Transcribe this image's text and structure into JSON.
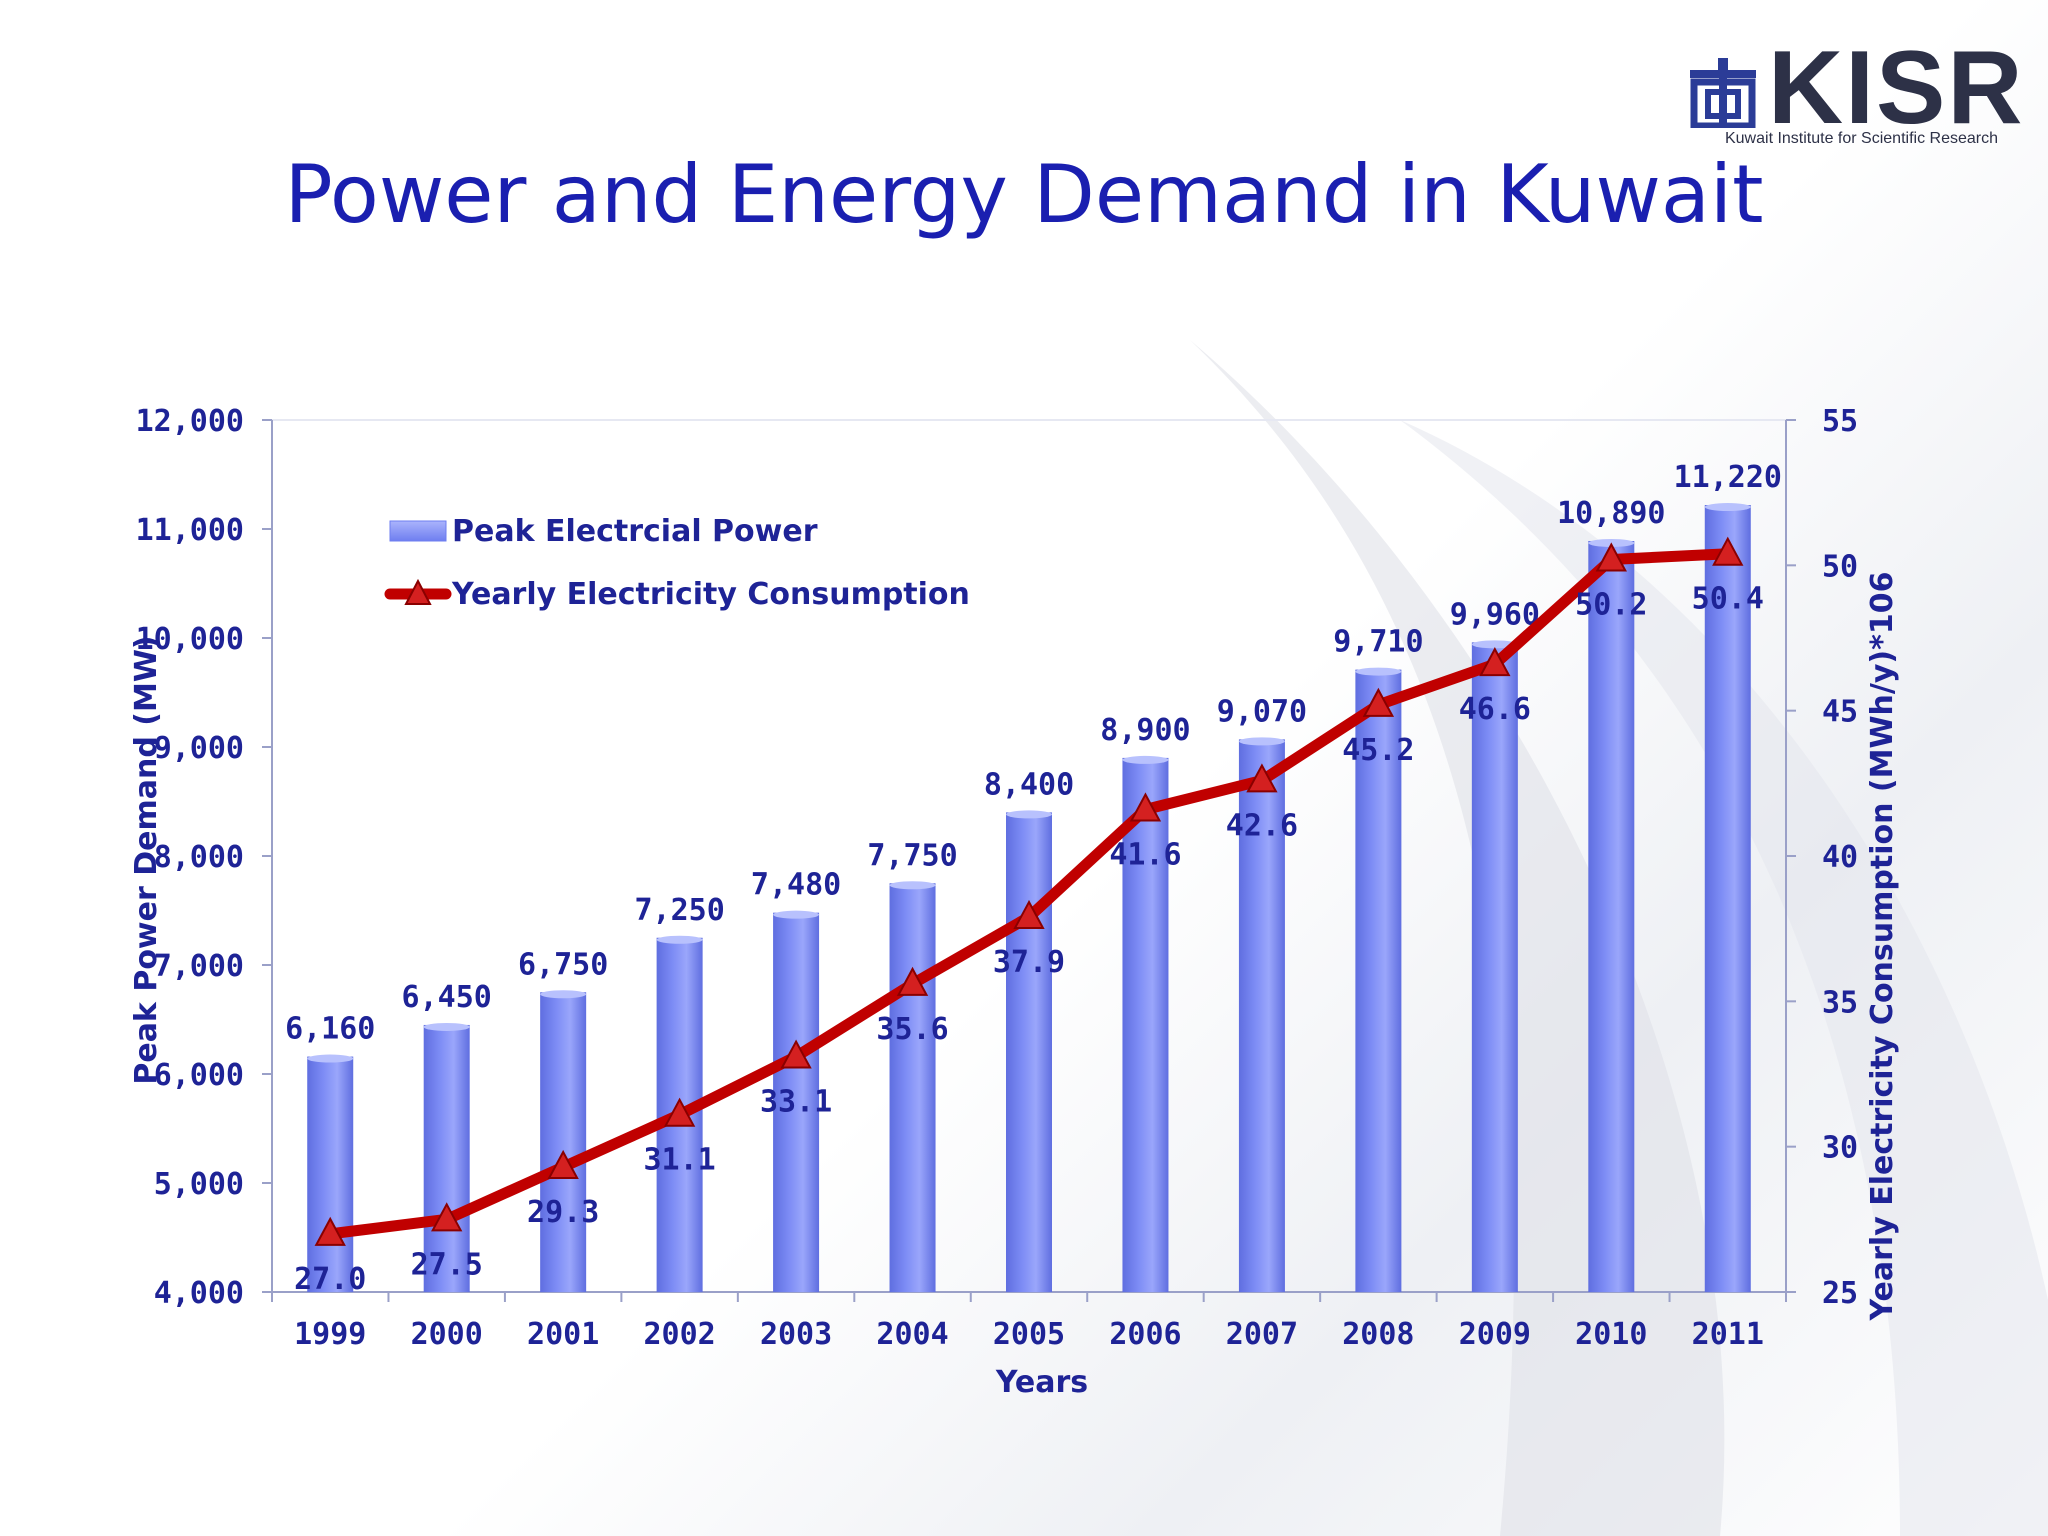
{
  "slide": {
    "title": "Power and Energy Demand in Kuwait"
  },
  "logo": {
    "text": "KISR",
    "subtitle": "Kuwait Institute for Scientific Research"
  },
  "colors": {
    "title": "#1a1fb0",
    "text": "#1e2396",
    "bar": "#7d8cf5",
    "line": "#c00000"
  },
  "chart_data": {
    "type": "bar",
    "xlabel": "Years",
    "ylabel": "Peak Power Demand (MW)",
    "y2label": "Yearly Electricity Consumption  (MWh/y)*106",
    "ylim": [
      4000,
      12000
    ],
    "y2lim": [
      25,
      55
    ],
    "yticks": [
      "4,000",
      "5,000",
      "6,000",
      "7,000",
      "8,000",
      "9,000",
      "10,000",
      "11,000",
      "12,000"
    ],
    "y2ticks": [
      "25",
      "30",
      "35",
      "40",
      "45",
      "50",
      "55"
    ],
    "grid": false,
    "legend_position": "top-left",
    "categories": [
      "1999",
      "2000",
      "2001",
      "2002",
      "2003",
      "2004",
      "2005",
      "2006",
      "2007",
      "2008",
      "2009",
      "2010",
      "2011"
    ],
    "series": [
      {
        "name": "Peak Electrcial Power",
        "type": "bar",
        "axis": "left",
        "values": [
          6160,
          6450,
          6750,
          7250,
          7480,
          7750,
          8400,
          8900,
          9070,
          9710,
          9960,
          10890,
          11220
        ],
        "labels": [
          "6,160",
          "6,450",
          "6,750",
          "7,250",
          "7,480",
          "7,750",
          "8,400",
          "8,900",
          "9,070",
          "9,710",
          "9,960",
          "10,890",
          "11,220"
        ]
      },
      {
        "name": "Yearly Electricity Consumption",
        "type": "line",
        "axis": "right",
        "marker": "triangle",
        "values": [
          27.0,
          27.5,
          29.3,
          31.1,
          33.1,
          35.6,
          37.9,
          41.6,
          42.6,
          45.2,
          46.6,
          50.2,
          50.4
        ],
        "labels": [
          "27.0",
          "27.5",
          "29.3",
          "31.1",
          "33.1",
          "35.6",
          "37.9",
          "41.6",
          "42.6",
          "45.2",
          "46.6",
          "50.2",
          "50.4"
        ]
      }
    ]
  }
}
